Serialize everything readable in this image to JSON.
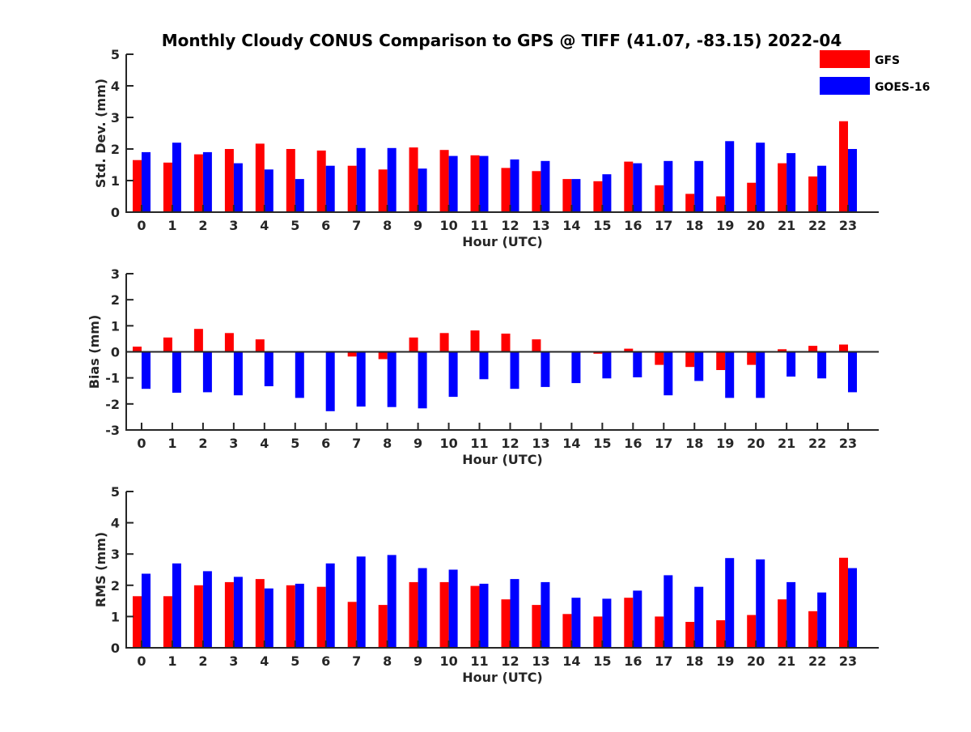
{
  "title": "Monthly Cloudy CONUS Comparison to GPS @ TIFF (41.07, -83.15) 2022-04",
  "legend": {
    "position": "top-right",
    "entries": [
      {
        "label": "GFS",
        "color": "#ff0000"
      },
      {
        "label": "GOES-16",
        "color": "#0000ff"
      }
    ]
  },
  "chart_data": [
    {
      "type": "bar",
      "xlabel": "Hour (UTC)",
      "ylabel": "Std. Dev. (mm)",
      "ylim": [
        0,
        5
      ],
      "yticks": [
        "0",
        "1",
        "2",
        "3",
        "4",
        "5"
      ],
      "categories": [
        "0",
        "1",
        "2",
        "3",
        "4",
        "5",
        "6",
        "7",
        "8",
        "9",
        "10",
        "11",
        "12",
        "13",
        "14",
        "15",
        "16",
        "17",
        "18",
        "19",
        "20",
        "21",
        "22",
        "23"
      ],
      "series": [
        {
          "name": "GFS",
          "color": "#ff0000",
          "values": [
            1.65,
            1.57,
            1.83,
            2.0,
            2.17,
            2.0,
            1.95,
            1.47,
            1.35,
            2.05,
            1.97,
            1.8,
            1.4,
            1.3,
            1.05,
            0.98,
            1.6,
            0.85,
            0.58,
            0.5,
            0.93,
            1.55,
            1.13,
            2.88
          ]
        },
        {
          "name": "GOES-16",
          "color": "#0000ff",
          "values": [
            1.9,
            2.2,
            1.9,
            1.55,
            1.35,
            1.05,
            1.47,
            2.03,
            2.03,
            1.38,
            1.78,
            1.78,
            1.67,
            1.62,
            1.05,
            1.2,
            1.55,
            1.62,
            1.62,
            2.25,
            2.2,
            1.87,
            1.47,
            2.0
          ]
        }
      ]
    },
    {
      "type": "bar",
      "xlabel": "Hour (UTC)",
      "ylabel": "Bias (mm)",
      "ylim": [
        -3,
        3
      ],
      "yticks": [
        "-3",
        "-2",
        "-1",
        "0",
        "1",
        "2",
        "3"
      ],
      "zero_line": true,
      "categories": [
        "0",
        "1",
        "2",
        "3",
        "4",
        "5",
        "6",
        "7",
        "8",
        "9",
        "10",
        "11",
        "12",
        "13",
        "14",
        "15",
        "16",
        "17",
        "18",
        "19",
        "20",
        "21",
        "22",
        "23"
      ],
      "series": [
        {
          "name": "GFS",
          "color": "#ff0000",
          "values": [
            0.2,
            0.55,
            0.88,
            0.72,
            0.48,
            0.03,
            -0.03,
            -0.18,
            -0.28,
            0.55,
            0.72,
            0.82,
            0.7,
            0.48,
            0.0,
            -0.07,
            0.12,
            -0.5,
            -0.58,
            -0.7,
            -0.5,
            0.1,
            0.23,
            0.28
          ]
        },
        {
          "name": "GOES-16",
          "color": "#0000ff",
          "values": [
            -1.42,
            -1.57,
            -1.55,
            -1.67,
            -1.32,
            -1.77,
            -2.28,
            -2.1,
            -2.12,
            -2.17,
            -1.73,
            -1.05,
            -1.42,
            -1.35,
            -1.2,
            -1.02,
            -0.98,
            -1.67,
            -1.12,
            -1.77,
            -1.77,
            -0.95,
            -1.02,
            -1.55
          ]
        }
      ]
    },
    {
      "type": "bar",
      "xlabel": "Hour (UTC)",
      "ylabel": "RMS (mm)",
      "ylim": [
        0,
        5
      ],
      "yticks": [
        "0",
        "1",
        "2",
        "3",
        "4",
        "5"
      ],
      "categories": [
        "0",
        "1",
        "2",
        "3",
        "4",
        "5",
        "6",
        "7",
        "8",
        "9",
        "10",
        "11",
        "12",
        "13",
        "14",
        "15",
        "16",
        "17",
        "18",
        "19",
        "20",
        "21",
        "22",
        "23"
      ],
      "series": [
        {
          "name": "GFS",
          "color": "#ff0000",
          "values": [
            1.65,
            1.65,
            2.0,
            2.1,
            2.2,
            2.0,
            1.95,
            1.47,
            1.37,
            2.1,
            2.1,
            1.98,
            1.55,
            1.37,
            1.08,
            1.0,
            1.6,
            1.0,
            0.83,
            0.88,
            1.05,
            1.55,
            1.17,
            2.88
          ]
        },
        {
          "name": "GOES-16",
          "color": "#0000ff",
          "values": [
            2.37,
            2.7,
            2.45,
            2.27,
            1.9,
            2.05,
            2.7,
            2.92,
            2.97,
            2.55,
            2.5,
            2.05,
            2.2,
            2.1,
            1.6,
            1.57,
            1.83,
            2.32,
            1.95,
            2.87,
            2.83,
            2.1,
            1.77,
            2.55
          ]
        }
      ]
    }
  ]
}
